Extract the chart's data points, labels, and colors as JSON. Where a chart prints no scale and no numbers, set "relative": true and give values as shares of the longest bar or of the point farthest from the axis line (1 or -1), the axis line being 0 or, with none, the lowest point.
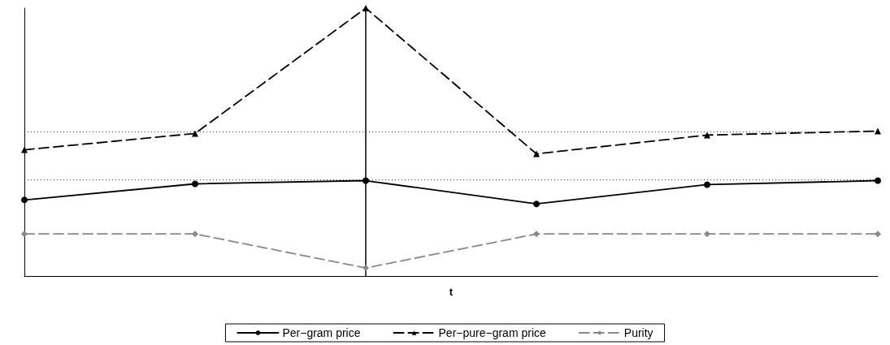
{
  "chart_data": {
    "type": "line",
    "relative": true,
    "xlabel": "t",
    "categories": [
      null,
      null,
      null,
      null,
      null,
      null
    ],
    "series": [
      {
        "name": "Per−gram price",
        "color": "#000000",
        "marker": "circle",
        "line_style": "solid",
        "values": [
          0.284,
          0.344,
          0.356,
          0.269,
          0.341,
          0.356
        ]
      },
      {
        "name": "Per−pure−gram price",
        "color": "#000000",
        "marker": "triangle",
        "line_style": "dashed",
        "values": [
          0.471,
          0.532,
          1,
          0.456,
          0.526,
          0.541
        ]
      },
      {
        "name": "Purity",
        "color": "#888888",
        "marker": "diamond",
        "line_style": "dashed",
        "values": [
          0.157,
          0.157,
          0.03,
          0.157,
          0.157,
          0.157
        ]
      }
    ],
    "ref_lines": [
      {
        "axis": "y",
        "value": 0.541,
        "color": "#000000",
        "line_style": "dotted"
      },
      {
        "axis": "y",
        "value": 0.356,
        "color": "#000000",
        "line_style": "dotted"
      }
    ],
    "grid": false,
    "legend": "bottom"
  }
}
